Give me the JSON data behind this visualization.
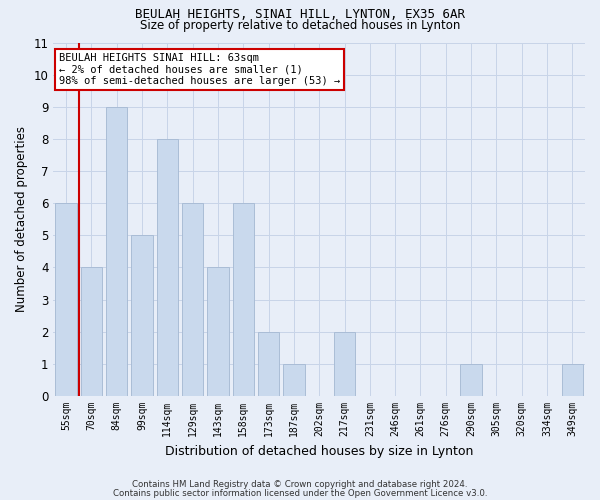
{
  "title1": "BEULAH HEIGHTS, SINAI HILL, LYNTON, EX35 6AR",
  "title2": "Size of property relative to detached houses in Lynton",
  "xlabel": "Distribution of detached houses by size in Lynton",
  "ylabel": "Number of detached properties",
  "categories": [
    "55sqm",
    "70sqm",
    "84sqm",
    "99sqm",
    "114sqm",
    "129sqm",
    "143sqm",
    "158sqm",
    "173sqm",
    "187sqm",
    "202sqm",
    "217sqm",
    "231sqm",
    "246sqm",
    "261sqm",
    "276sqm",
    "290sqm",
    "305sqm",
    "320sqm",
    "334sqm",
    "349sqm"
  ],
  "values": [
    6,
    4,
    9,
    5,
    8,
    6,
    4,
    6,
    2,
    1,
    0,
    2,
    0,
    0,
    0,
    0,
    1,
    0,
    0,
    0,
    1
  ],
  "bar_color": "#c9d9ed",
  "bar_edge_color": "#aabdd6",
  "ylim": [
    0,
    11
  ],
  "yticks": [
    0,
    1,
    2,
    3,
    4,
    5,
    6,
    7,
    8,
    9,
    10,
    11
  ],
  "annotation_title": "BEULAH HEIGHTS SINAI HILL: 63sqm",
  "annotation_line1": "← 2% of detached houses are smaller (1)",
  "annotation_line2": "98% of semi-detached houses are larger (53) →",
  "annotation_box_color": "#ffffff",
  "annotation_box_edge": "#cc0000",
  "footer1": "Contains HM Land Registry data © Crown copyright and database right 2024.",
  "footer2": "Contains public sector information licensed under the Open Government Licence v3.0.",
  "background_color": "#e8eef8",
  "plot_background": "#e8eef8",
  "grid_color": "#c8d4e8",
  "red_line_color": "#cc0000",
  "red_line_index": 0.5
}
